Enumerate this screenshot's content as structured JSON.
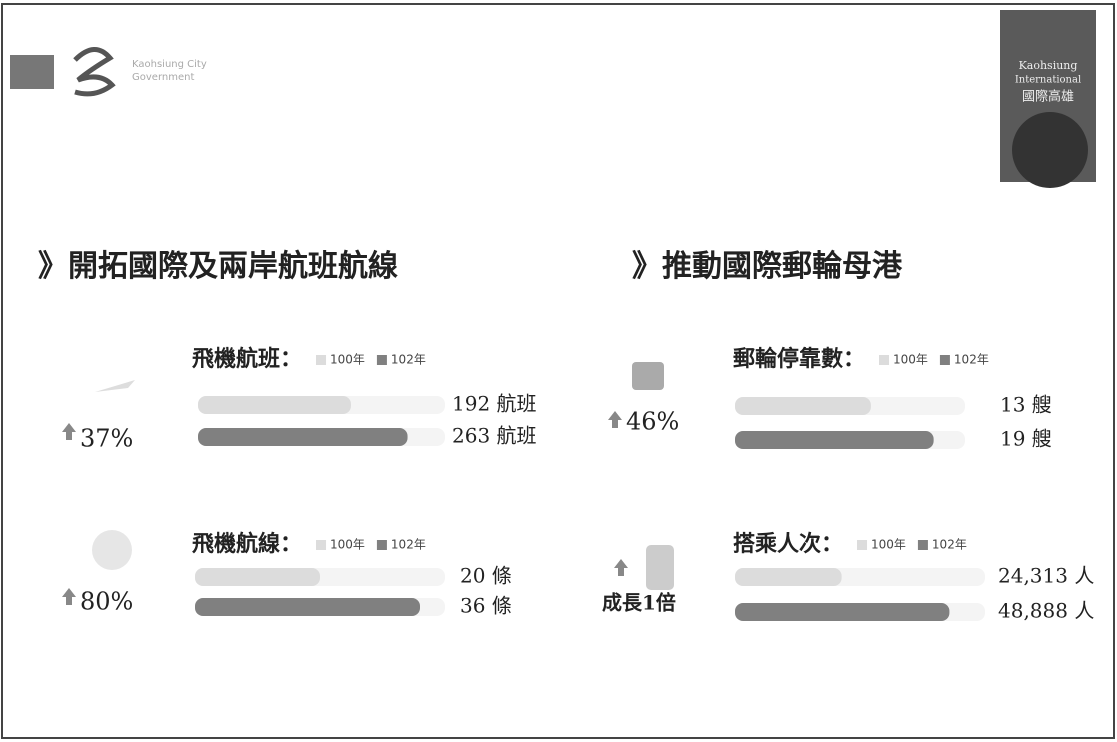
{
  "header": {
    "logo_text": [
      "Kaohsiung City",
      "Government"
    ],
    "badge_text": [
      "Kaohsiung",
      "International",
      "國際高雄"
    ]
  },
  "sections": [
    {
      "heading": "》開拓國際及兩岸航班航線"
    },
    {
      "heading": "》推動國際郵輪母港"
    }
  ],
  "growth": [
    "37%",
    "80%",
    "46%",
    "成長1倍"
  ],
  "chart_data": [
    {
      "type": "bar",
      "title": "飛機航班：",
      "categories": [
        "100年",
        "102年"
      ],
      "colors": [
        "#dcdcdc",
        "#808080"
      ],
      "values": [
        192,
        263
      ],
      "value_labels": [
        "192 航班",
        "263 航班"
      ],
      "xlim": [
        0,
        310
      ]
    },
    {
      "type": "bar",
      "title": "飛機航線：",
      "categories": [
        "100年",
        "102年"
      ],
      "colors": [
        "#dcdcdc",
        "#808080"
      ],
      "values": [
        20,
        36
      ],
      "value_labels": [
        "20 條",
        "36 條"
      ],
      "xlim": [
        0,
        40
      ]
    },
    {
      "type": "bar",
      "title": "郵輪停靠數：",
      "categories": [
        "100年",
        "102年"
      ],
      "colors": [
        "#dcdcdc",
        "#808080"
      ],
      "values": [
        13,
        19
      ],
      "value_labels": [
        "13 艘",
        "19 艘"
      ],
      "xlim": [
        0,
        22
      ]
    },
    {
      "type": "bar",
      "title": "搭乘人次：",
      "categories": [
        "100年",
        "102年"
      ],
      "colors": [
        "#dcdcdc",
        "#808080"
      ],
      "values": [
        24313,
        48888
      ],
      "value_labels": [
        "24,313 人",
        "48,888 人"
      ],
      "xlim": [
        0,
        57000
      ]
    }
  ]
}
